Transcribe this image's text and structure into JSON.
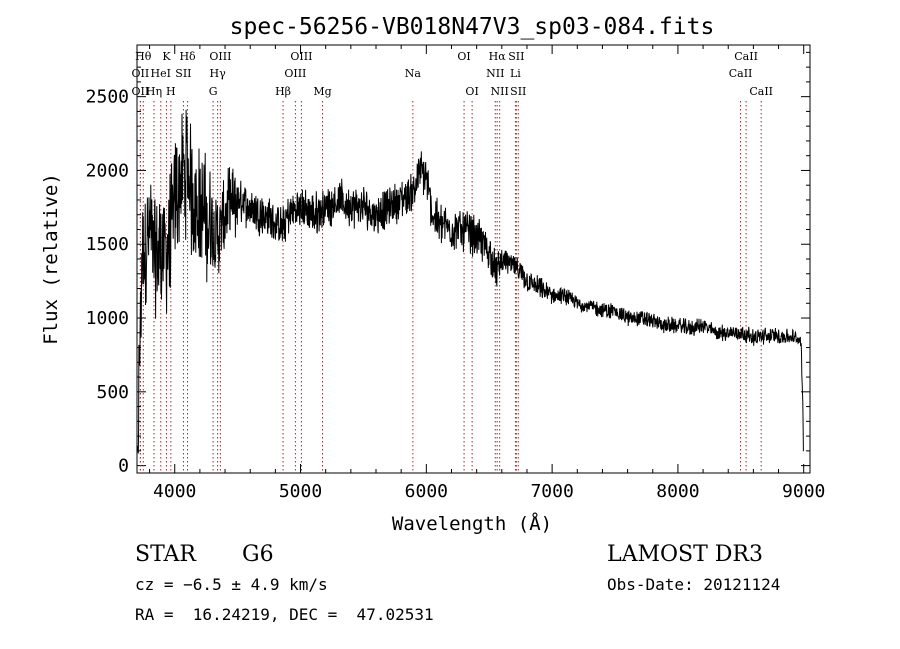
{
  "chart_data": {
    "type": "line",
    "title": "spec-56256-VB018N47V3_sp03-084.fits",
    "xlabel": "Wavelength (Å)",
    "ylabel": "Flux (relative)",
    "xlim": [
      3700,
      9050
    ],
    "ylim": [
      -50,
      2850
    ],
    "xticks": [
      4000,
      5000,
      6000,
      7000,
      8000,
      9000
    ],
    "xtick_labels": [
      "4000",
      "5000",
      "6000",
      "7000",
      "8000",
      "9000"
    ],
    "yticks": [
      0,
      500,
      1000,
      1500,
      2000,
      2500
    ],
    "ytick_labels": [
      "0",
      "500",
      "1000",
      "1500",
      "2000",
      "2500"
    ],
    "series": [
      {
        "name": "flux",
        "x": [
          3700,
          3740,
          3800,
          3850,
          3900,
          3950,
          4000,
          4050,
          4100,
          4150,
          4200,
          4250,
          4300,
          4350,
          4400,
          4500,
          4600,
          4700,
          4800,
          4860,
          4900,
          5000,
          5100,
          5200,
          5300,
          5400,
          5500,
          5600,
          5700,
          5800,
          5890,
          5950,
          6000,
          6050,
          6100,
          6200,
          6300,
          6400,
          6500,
          6563,
          6600,
          6700,
          6800,
          6900,
          7000,
          7100,
          7200,
          7300,
          7400,
          7500,
          7600,
          7700,
          7800,
          7900,
          8000,
          8100,
          8200,
          8300,
          8400,
          8500,
          8600,
          8700,
          8800,
          8900,
          8980,
          9000
        ],
        "values": [
          50,
          1400,
          1600,
          1400,
          1500,
          1450,
          1800,
          1950,
          2000,
          1800,
          1750,
          1650,
          1600,
          1550,
          1700,
          1800,
          1750,
          1700,
          1650,
          1600,
          1700,
          1750,
          1700,
          1750,
          1800,
          1750,
          1750,
          1700,
          1750,
          1800,
          1850,
          2000,
          1950,
          1700,
          1650,
          1600,
          1600,
          1550,
          1450,
          1300,
          1400,
          1350,
          1250,
          1200,
          1150,
          1150,
          1100,
          1080,
          1050,
          1050,
          1000,
          1000,
          980,
          950,
          950,
          930,
          950,
          900,
          900,
          900,
          870,
          880,
          880,
          870,
          850,
          100
        ]
      }
    ],
    "lines": [
      {
        "name": "OII",
        "wave": 3727,
        "row": 1
      },
      {
        "name": "Hθ",
        "wave": 3750,
        "row": 0
      },
      {
        "name": "OII",
        "wave": 3727,
        "row": 2
      },
      {
        "name": "Hη",
        "wave": 3835,
        "row": 2
      },
      {
        "name": "HeI",
        "wave": 3889,
        "row": 1
      },
      {
        "name": "K",
        "wave": 3934,
        "row": 0
      },
      {
        "name": "H",
        "wave": 3969,
        "row": 2
      },
      {
        "name": "SII",
        "wave": 4069,
        "row": 1
      },
      {
        "name": "Hδ",
        "wave": 4102,
        "row": 0
      },
      {
        "name": "OIII",
        "wave": 4363,
        "row": 0
      },
      {
        "name": "Hγ",
        "wave": 4341,
        "row": 1
      },
      {
        "name": "G",
        "wave": 4305,
        "row": 2
      },
      {
        "name": "Hβ",
        "wave": 4861,
        "row": 2
      },
      {
        "name": "OIII",
        "wave": 4959,
        "row": 1
      },
      {
        "name": "OIII",
        "wave": 5007,
        "row": 0
      },
      {
        "name": "Mg",
        "wave": 5175,
        "row": 2
      },
      {
        "name": "Na",
        "wave": 5893,
        "row": 1
      },
      {
        "name": "OI",
        "wave": 6300,
        "row": 0
      },
      {
        "name": "OI",
        "wave": 6364,
        "row": 2
      },
      {
        "name": "NII",
        "wave": 6548,
        "row": 1
      },
      {
        "name": "Hα",
        "wave": 6563,
        "row": 0
      },
      {
        "name": "NII",
        "wave": 6583,
        "row": 2
      },
      {
        "name": "SII",
        "wave": 6716,
        "row": 0
      },
      {
        "name": "Li",
        "wave": 6708,
        "row": 1
      },
      {
        "name": "SII",
        "wave": 6731,
        "row": 2
      },
      {
        "name": "CaII",
        "wave": 8498,
        "row": 1
      },
      {
        "name": "CaII",
        "wave": 8542,
        "row": 0
      },
      {
        "name": "CaII",
        "wave": 8662,
        "row": 2
      }
    ]
  },
  "info": {
    "class_label": "STAR",
    "subclass": "G6",
    "survey": "LAMOST DR3",
    "cz": "cz = −6.5 ± 4.9 km/s",
    "obs_date": "Obs-Date: 20121124",
    "radec": "RA =  16.24219, DEC =  47.02531"
  },
  "colors": {
    "line_marker": "#b22222",
    "spectrum": "#000000",
    "axis": "#000000"
  }
}
